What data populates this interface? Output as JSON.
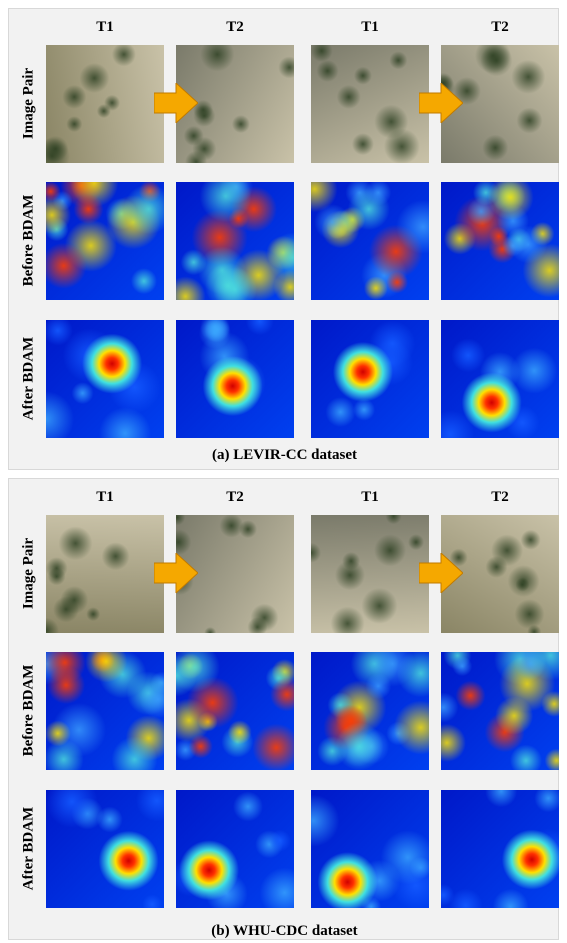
{
  "panels": [
    {
      "columns": [
        "T1",
        "T2",
        "T1",
        "T2"
      ],
      "rows": [
        "Image Pair",
        "Before BDAM",
        "After BDAM"
      ],
      "caption": "(a) LEVIR-CC dataset"
    },
    {
      "columns": [
        "T1",
        "T2",
        "T1",
        "T2"
      ],
      "rows": [
        "Image Pair",
        "Before BDAM",
        "After BDAM"
      ],
      "caption": "(b) WHU-CDC dataset"
    }
  ]
}
